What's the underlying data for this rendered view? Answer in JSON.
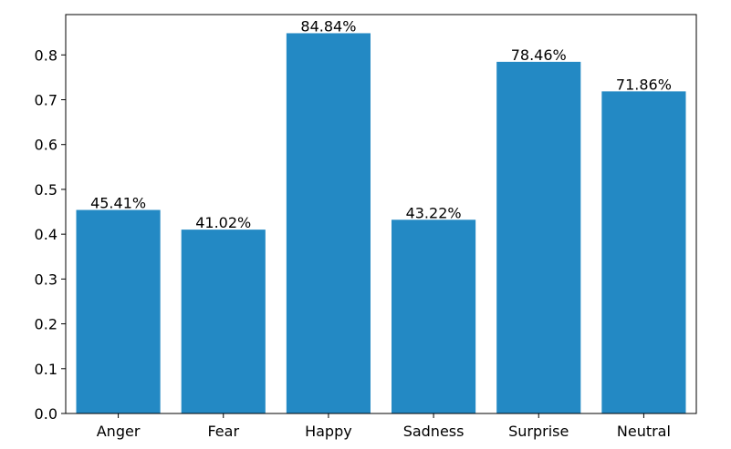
{
  "chart_data": {
    "type": "bar",
    "title": "",
    "xlabel": "",
    "ylabel": "",
    "categories": [
      "Anger",
      "Fear",
      "Happy",
      "Sadness",
      "Surprise",
      "Neutral"
    ],
    "values": [
      0.4541,
      0.4102,
      0.8484,
      0.4322,
      0.7846,
      0.7186
    ],
    "data_labels": [
      "45.41%",
      "41.02%",
      "84.84%",
      "43.22%",
      "78.46%",
      "71.86%"
    ],
    "ylim": [
      0,
      0.89
    ],
    "yticks": [
      0.0,
      0.1,
      0.2,
      0.3,
      0.4,
      0.5,
      0.6,
      0.7,
      0.8
    ],
    "ytick_labels": [
      "0.0",
      "0.1",
      "0.2",
      "0.3",
      "0.4",
      "0.5",
      "0.6",
      "0.7",
      "0.8"
    ],
    "bar_color": "#2389c4",
    "grid": false,
    "legend": "none"
  }
}
